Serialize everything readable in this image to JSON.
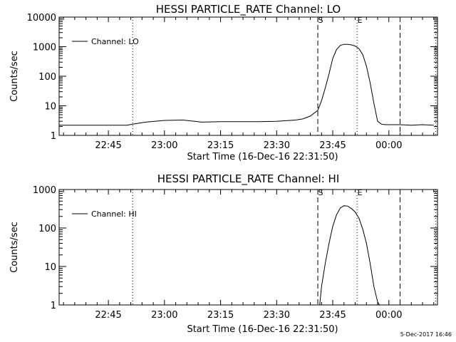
{
  "stamp": "5-Dec-2017 16:46",
  "chart_data": [
    {
      "type": "line",
      "title": "HESSI PARTICLE_RATE Channel: LO",
      "xlabel": "Start Time (16-Dec-16 22:31:50)",
      "ylabel": "Counts/sec",
      "y_scale": "log",
      "ylim": [
        1,
        10000
      ],
      "xlim": [
        "22:31:50",
        "00:13:00"
      ],
      "x_ticks": [
        "22:45",
        "23:00",
        "23:15",
        "23:30",
        "23:45",
        "00:00"
      ],
      "y_ticks": [
        "1",
        "10",
        "100",
        "1000",
        "10000"
      ],
      "legend": {
        "position": "top-left",
        "entries": [
          "Channel: LO"
        ]
      },
      "markers": [
        {
          "label": "S",
          "time": "23:41:00",
          "style": "dashed"
        },
        {
          "label": "E",
          "time": "23:51:30",
          "style": "dotted"
        }
      ],
      "vlines": [
        {
          "time": "22:51:30",
          "style": "dotted"
        },
        {
          "time": "00:03:00",
          "style": "dashed"
        },
        {
          "time": "00:12:30",
          "style": "dotted"
        }
      ],
      "series": [
        {
          "name": "Channel: LO",
          "x": [
            "22:31:50",
            "22:50:00",
            "22:51:30",
            "22:55:00",
            "23:00:00",
            "23:05:00",
            "23:10:00",
            "23:15:00",
            "23:20:00",
            "23:25:00",
            "23:30:00",
            "23:35:00",
            "23:37:00",
            "23:39:00",
            "23:41:00",
            "23:42:00",
            "23:43:00",
            "23:44:00",
            "23:45:00",
            "23:46:00",
            "23:47:00",
            "23:48:00",
            "23:49:00",
            "23:50:00",
            "23:51:00",
            "23:52:00",
            "23:53:00",
            "23:54:00",
            "23:55:00",
            "23:56:00",
            "23:57:00",
            "23:58:00",
            "23:59:00",
            "00:00:00",
            "00:03:00",
            "00:06:00",
            "00:09:00",
            "00:12:00"
          ],
          "y": [
            2.2,
            2.2,
            2.4,
            2.8,
            3.2,
            3.3,
            2.8,
            2.9,
            2.9,
            2.9,
            3.0,
            3.3,
            3.6,
            4.5,
            7,
            15,
            40,
            120,
            400,
            800,
            1100,
            1200,
            1200,
            1150,
            1050,
            850,
            550,
            220,
            60,
            12,
            3,
            2.4,
            2.3,
            2.3,
            2.3,
            2.2,
            2.3,
            2.2
          ]
        }
      ]
    },
    {
      "type": "line",
      "title": "HESSI PARTICLE_RATE Channel: HI",
      "xlabel": "Start Time (16-Dec-16 22:31:50)",
      "ylabel": "Counts/sec",
      "y_scale": "log",
      "ylim": [
        1,
        1000
      ],
      "xlim": [
        "22:31:50",
        "00:13:00"
      ],
      "x_ticks": [
        "22:45",
        "23:00",
        "23:15",
        "23:30",
        "23:45",
        "00:00"
      ],
      "y_ticks": [
        "1",
        "10",
        "100",
        "1000"
      ],
      "legend": {
        "position": "top-left",
        "entries": [
          "Channel: HI"
        ]
      },
      "markers": [
        {
          "label": "S",
          "time": "23:41:00",
          "style": "dashed"
        },
        {
          "label": "E",
          "time": "23:51:30",
          "style": "dotted"
        }
      ],
      "vlines": [
        {
          "time": "22:51:30",
          "style": "dotted"
        },
        {
          "time": "00:03:00",
          "style": "dashed"
        },
        {
          "time": "00:12:30",
          "style": "dotted"
        }
      ],
      "series": [
        {
          "name": "Channel: HI",
          "x": [
            "23:41:30",
            "23:42:00",
            "23:43:00",
            "23:44:00",
            "23:45:00",
            "23:46:00",
            "23:47:00",
            "23:48:00",
            "23:49:00",
            "23:50:00",
            "23:51:00",
            "23:52:00",
            "23:53:00",
            "23:54:00",
            "23:55:00",
            "23:56:00",
            "23:57:00",
            "23:57:30"
          ],
          "y": [
            1,
            3,
            12,
            40,
            110,
            220,
            330,
            380,
            370,
            320,
            260,
            180,
            95,
            40,
            12,
            3,
            1.2,
            1
          ]
        }
      ]
    }
  ]
}
